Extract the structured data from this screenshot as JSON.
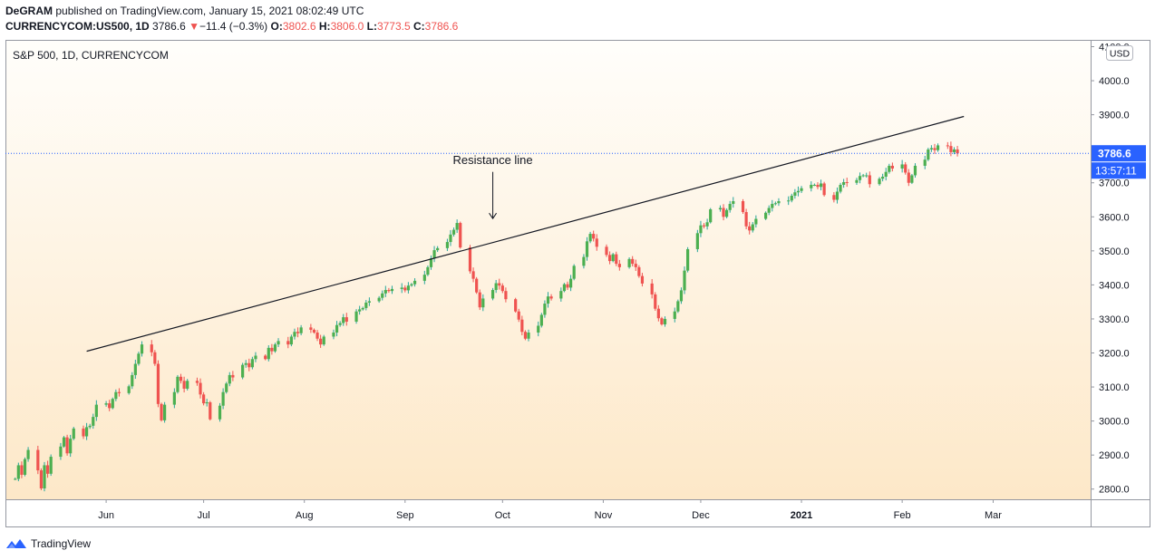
{
  "header": {
    "publisher": "DeGRAM",
    "published_text": "published on TradingView.com, January 15, 2021 08:02:49 UTC",
    "symbol": "CURRENCYCOM:US500, 1D",
    "last": "3786.6",
    "change": "−11.4 (−0.3%)",
    "o_label": "O:",
    "o_value": "3802.6",
    "h_label": "H:",
    "h_value": "3806.0",
    "l_label": "L:",
    "l_value": "3773.5",
    "c_label": "C:",
    "c_value": "3786.6"
  },
  "footer": {
    "brand": "TradingView"
  },
  "colors": {
    "up": "#26a69a",
    "up_body": "#4caf50",
    "down": "#ef5350",
    "price_tag": "#2962ff",
    "bg_top": "#fffefb",
    "bg_bottom": "#fde8c8"
  },
  "chart_data": {
    "type": "candlestick",
    "title": "S&P 500, 1D, CURRENCYCOM",
    "currency": "USD",
    "ylim": [
      2770,
      4120
    ],
    "y_ticks": [
      2800,
      2900,
      3000,
      3100,
      3200,
      3300,
      3400,
      3500,
      3600,
      3700,
      3800,
      3900,
      4000,
      4100
    ],
    "y_tick_labels": [
      "2800.0",
      "2900.0",
      "3000.0",
      "3100.0",
      "3200.0",
      "3300.0",
      "3400.0",
      "3500.0",
      "3600.0",
      "3700.0",
      "3800.0",
      "3900.0",
      "4000.0",
      "4100.0"
    ],
    "x_ticks": [
      {
        "label": "Jun",
        "date": "2020-06-01"
      },
      {
        "label": "Jul",
        "date": "2020-07-01"
      },
      {
        "label": "Aug",
        "date": "2020-08-01"
      },
      {
        "label": "Sep",
        "date": "2020-09-01"
      },
      {
        "label": "Oct",
        "date": "2020-10-01"
      },
      {
        "label": "Nov",
        "date": "2020-11-01"
      },
      {
        "label": "Dec",
        "date": "2020-12-01"
      },
      {
        "label": "2021",
        "date": "2021-01-01",
        "bold": true
      },
      {
        "label": "Feb",
        "date": "2021-02-01"
      },
      {
        "label": "Mar",
        "date": "2021-03-01"
      }
    ],
    "xlim": [
      "2020-05-01",
      "2021-03-31"
    ],
    "last_price": 3786.6,
    "last_price_label": "3786.6",
    "countdown_label": "13:57:11",
    "annotation": {
      "text": "Resistance line",
      "arrow_from": [
        "2020-09-28",
        3780
      ],
      "arrow_to": [
        "2020-09-28",
        3595
      ]
    },
    "resistance_line": [
      {
        "date": "2020-05-26",
        "value": 3205
      },
      {
        "date": "2021-02-20",
        "value": 3895
      }
    ],
    "anchor": {
      "date": "2020-05-04",
      "close": 2830
    },
    "closes": [
      2830,
      2870,
      2842,
      2888,
      2915,
      2855,
      2802,
      2870,
      2845,
      2895,
      2925,
      2952,
      2905,
      2948,
      2978,
      2955,
      2982,
      2986,
      3012,
      3048,
      3052,
      3038,
      3065,
      3085,
      3082,
      3102,
      3135,
      3168,
      3198,
      3225,
      3202,
      3168,
      3050,
      3002,
      3048,
      3085,
      3130,
      3118,
      3095,
      3118,
      3112,
      3078,
      3052,
      3055,
      3005,
      3045,
      3085,
      3110,
      3135,
      3128,
      3165,
      3170,
      3158,
      3182,
      3192,
      3182,
      3215,
      3205,
      3225,
      3235,
      3225,
      3248,
      3262,
      3258,
      3275,
      3268,
      3260,
      3242,
      3225,
      3248,
      3260,
      3282,
      3288,
      3305,
      3292,
      3322,
      3328,
      3332,
      3348,
      3352,
      3362,
      3375,
      3385,
      3382,
      3388,
      3392,
      3384,
      3398,
      3402,
      3412,
      3430,
      3452,
      3478,
      3502,
      3508,
      3526,
      3548,
      3562,
      3582,
      3510,
      3440,
      3418,
      3378,
      3334,
      3360,
      3385,
      3405,
      3398,
      3382,
      3358,
      3322,
      3298,
      3262,
      3242,
      3260,
      3280,
      3312,
      3345,
      3366,
      3360,
      3382,
      3402,
      3392,
      3418,
      3456,
      3482,
      3528,
      3550,
      3536,
      3512,
      3488,
      3470,
      3490,
      3462,
      3452,
      3476,
      3462,
      3452,
      3426,
      3404,
      3372,
      3330,
      3302,
      3284,
      3300,
      3322,
      3352,
      3384,
      3442,
      3505,
      3552,
      3575,
      3572,
      3584,
      3622,
      3626,
      3600,
      3620,
      3638,
      3646,
      3614,
      3572,
      3560,
      3578,
      3594,
      3612,
      3626,
      3638,
      3640,
      3646,
      3648,
      3662,
      3672,
      3676,
      3684,
      3694,
      3694,
      3688,
      3698,
      3664,
      3650,
      3674,
      3694,
      3702,
      3700,
      3708,
      3720,
      3722,
      3722,
      3696,
      3712,
      3718,
      3732,
      3750,
      3742,
      3754,
      3730,
      3700,
      3722,
      3750,
      3768,
      3798,
      3802,
      3796,
      3810,
      3808,
      3790,
      3798,
      3786.6
    ]
  }
}
